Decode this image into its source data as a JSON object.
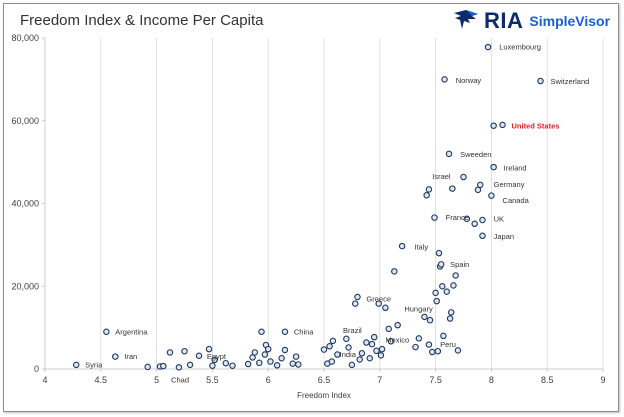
{
  "chart_data": {
    "type": "scatter",
    "title": "Freedom Index & Income Per Capita",
    "xlabel": "Freedom Index",
    "ylabel": "",
    "xlim": [
      4,
      9
    ],
    "ylim": [
      0,
      80000
    ],
    "x_ticks": [
      "4",
      "4.5",
      "5",
      "5.5",
      "6",
      "6.5",
      "7",
      "7.5",
      "8",
      "8.5",
      "9"
    ],
    "y_ticks": [
      "0",
      "20,000",
      "40,000",
      "60,000",
      "80,000"
    ],
    "grid": "vertical",
    "marker_color": "#1f3a60",
    "highlight_color": "#e02020",
    "points": [
      {
        "x": 4.28,
        "y": 1000
      },
      {
        "x": 4.55,
        "y": 9000
      },
      {
        "x": 4.63,
        "y": 3000
      },
      {
        "x": 4.92,
        "y": 500
      },
      {
        "x": 5.03,
        "y": 600
      },
      {
        "x": 5.06,
        "y": 700
      },
      {
        "x": 5.12,
        "y": 4000
      },
      {
        "x": 5.2,
        "y": 400
      },
      {
        "x": 5.25,
        "y": 4300
      },
      {
        "x": 5.3,
        "y": 1000
      },
      {
        "x": 5.38,
        "y": 3200
      },
      {
        "x": 5.47,
        "y": 4800
      },
      {
        "x": 5.5,
        "y": 800
      },
      {
        "x": 5.52,
        "y": 2200
      },
      {
        "x": 5.62,
        "y": 1400
      },
      {
        "x": 5.68,
        "y": 800
      },
      {
        "x": 5.82,
        "y": 1200
      },
      {
        "x": 5.86,
        "y": 2800
      },
      {
        "x": 5.88,
        "y": 4000
      },
      {
        "x": 5.92,
        "y": 1500
      },
      {
        "x": 5.94,
        "y": 9000
      },
      {
        "x": 5.97,
        "y": 3500
      },
      {
        "x": 5.98,
        "y": 5800
      },
      {
        "x": 6.0,
        "y": 4800
      },
      {
        "x": 6.02,
        "y": 1800
      },
      {
        "x": 6.08,
        "y": 900
      },
      {
        "x": 6.12,
        "y": 2600
      },
      {
        "x": 6.15,
        "y": 4600
      },
      {
        "x": 6.15,
        "y": 9000
      },
      {
        "x": 6.22,
        "y": 1300
      },
      {
        "x": 6.25,
        "y": 3000
      },
      {
        "x": 6.27,
        "y": 1100
      },
      {
        "x": 6.5,
        "y": 4700
      },
      {
        "x": 6.53,
        "y": 1300
      },
      {
        "x": 6.55,
        "y": 5500
      },
      {
        "x": 6.57,
        "y": 1800
      },
      {
        "x": 6.58,
        "y": 6800
      },
      {
        "x": 6.62,
        "y": 3500
      },
      {
        "x": 6.7,
        "y": 7300
      },
      {
        "x": 6.72,
        "y": 5200
      },
      {
        "x": 6.75,
        "y": 1000
      },
      {
        "x": 6.78,
        "y": 15800
      },
      {
        "x": 6.8,
        "y": 17400
      },
      {
        "x": 6.82,
        "y": 2300
      },
      {
        "x": 6.84,
        "y": 3800
      },
      {
        "x": 6.88,
        "y": 6400
      },
      {
        "x": 6.91,
        "y": 2600
      },
      {
        "x": 6.93,
        "y": 6000
      },
      {
        "x": 6.95,
        "y": 7700
      },
      {
        "x": 6.97,
        "y": 4400
      },
      {
        "x": 6.99,
        "y": 15800
      },
      {
        "x": 7.01,
        "y": 3300
      },
      {
        "x": 7.02,
        "y": 4800
      },
      {
        "x": 7.05,
        "y": 14800
      },
      {
        "x": 7.08,
        "y": 9700
      },
      {
        "x": 7.1,
        "y": 6700
      },
      {
        "x": 7.13,
        "y": 23600
      },
      {
        "x": 7.16,
        "y": 10600
      },
      {
        "x": 7.2,
        "y": 29700
      },
      {
        "x": 7.32,
        "y": 5300
      },
      {
        "x": 7.35,
        "y": 7400
      },
      {
        "x": 7.4,
        "y": 12600
      },
      {
        "x": 7.42,
        "y": 42000
      },
      {
        "x": 7.44,
        "y": 43400
      },
      {
        "x": 7.44,
        "y": 5900
      },
      {
        "x": 7.45,
        "y": 11800
      },
      {
        "x": 7.47,
        "y": 4100
      },
      {
        "x": 7.49,
        "y": 36600
      },
      {
        "x": 7.5,
        "y": 18400
      },
      {
        "x": 7.51,
        "y": 16400
      },
      {
        "x": 7.52,
        "y": 4300
      },
      {
        "x": 7.53,
        "y": 28000
      },
      {
        "x": 7.54,
        "y": 24800
      },
      {
        "x": 7.55,
        "y": 25300
      },
      {
        "x": 7.56,
        "y": 20000
      },
      {
        "x": 7.57,
        "y": 8000
      },
      {
        "x": 7.58,
        "y": 70000
      },
      {
        "x": 7.6,
        "y": 18700
      },
      {
        "x": 7.62,
        "y": 52000
      },
      {
        "x": 7.63,
        "y": 12200
      },
      {
        "x": 7.64,
        "y": 13700
      },
      {
        "x": 7.65,
        "y": 43600
      },
      {
        "x": 7.66,
        "y": 20200
      },
      {
        "x": 7.68,
        "y": 22600
      },
      {
        "x": 7.7,
        "y": 4500
      },
      {
        "x": 7.75,
        "y": 46400
      },
      {
        "x": 7.78,
        "y": 36300
      },
      {
        "x": 7.85,
        "y": 35100
      },
      {
        "x": 7.88,
        "y": 43300
      },
      {
        "x": 7.9,
        "y": 44500
      },
      {
        "x": 7.92,
        "y": 32200
      },
      {
        "x": 7.92,
        "y": 36000
      },
      {
        "x": 7.97,
        "y": 77800
      },
      {
        "x": 8.0,
        "y": 41900
      },
      {
        "x": 8.02,
        "y": 48800
      },
      {
        "x": 8.02,
        "y": 58800
      },
      {
        "x": 8.1,
        "y": 59000
      },
      {
        "x": 8.44,
        "y": 69600
      }
    ],
    "annotations": [
      {
        "text": "Syria",
        "x": 4.36,
        "y": 1000
      },
      {
        "text": "Argentina",
        "x": 4.63,
        "y": 9000
      },
      {
        "text": "Iran",
        "x": 4.71,
        "y": 3000
      },
      {
        "text": "Chad",
        "x": 5.13,
        "y": -2600
      },
      {
        "text": "Egypt",
        "x": 5.45,
        "y": 3100
      },
      {
        "text": "China",
        "x": 6.23,
        "y": 9000
      },
      {
        "text": "Brazil",
        "x": 6.67,
        "y": 9300
      },
      {
        "text": "India",
        "x": 6.64,
        "y": 3500
      },
      {
        "text": "Mexico",
        "x": 7.05,
        "y": 7000
      },
      {
        "text": "Greece",
        "x": 6.88,
        "y": 17000
      },
      {
        "text": "Hungary",
        "x": 7.22,
        "y": 14500
      },
      {
        "text": "Peru",
        "x": 7.54,
        "y": 6000
      },
      {
        "text": "Italy",
        "x": 7.31,
        "y": 29500
      },
      {
        "text": "Spain",
        "x": 7.63,
        "y": 25300
      },
      {
        "text": "France",
        "x": 7.59,
        "y": 36600
      },
      {
        "text": "UK",
        "x": 8.02,
        "y": 36300
      },
      {
        "text": "Japan",
        "x": 8.02,
        "y": 32100
      },
      {
        "text": "Israel",
        "x": 7.47,
        "y": 46600
      },
      {
        "text": "Germany",
        "x": 8.02,
        "y": 44600
      },
      {
        "text": "Canada",
        "x": 8.1,
        "y": 40700
      },
      {
        "text": "Sweeden",
        "x": 7.72,
        "y": 51900
      },
      {
        "text": "Ireland",
        "x": 8.11,
        "y": 48600
      },
      {
        "text": "Norway",
        "x": 7.68,
        "y": 69700
      },
      {
        "text": "Luxembourg",
        "x": 8.07,
        "y": 77800
      },
      {
        "text": "Switzerland",
        "x": 8.53,
        "y": 69500
      },
      {
        "text": "United States",
        "x": 8.18,
        "y": 58800,
        "highlight": true
      }
    ]
  },
  "logo": {
    "brand": "RIA",
    "product": "SimpleVisor"
  }
}
